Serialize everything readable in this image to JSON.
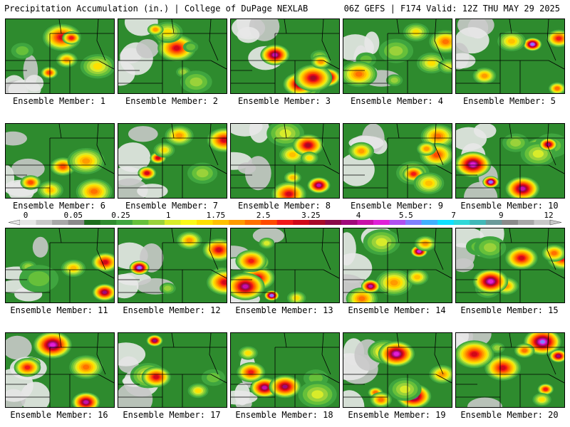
{
  "header": {
    "left": "Precipitation Accumulation (in.) | College of DuPage NEXLAB",
    "right": "06Z GEFS | F174 Valid: 12Z THU MAY 29 2025"
  },
  "members": [
    {
      "label": "Ensemble Member: 1"
    },
    {
      "label": "Ensemble Member: 2"
    },
    {
      "label": "Ensemble Member: 3"
    },
    {
      "label": "Ensemble Member: 4"
    },
    {
      "label": "Ensemble Member: 5"
    },
    {
      "label": "Ensemble Member: 6"
    },
    {
      "label": "Ensemble Member: 7"
    },
    {
      "label": "Ensemble Member: 8"
    },
    {
      "label": "Ensemble Member: 9"
    },
    {
      "label": "Ensemble Member: 10"
    },
    {
      "label": "Ensemble Member: 11"
    },
    {
      "label": "Ensemble Member: 12"
    },
    {
      "label": "Ensemble Member: 13"
    },
    {
      "label": "Ensemble Member: 14"
    },
    {
      "label": "Ensemble Member: 15"
    },
    {
      "label": "Ensemble Member: 16"
    },
    {
      "label": "Ensemble Member: 17"
    },
    {
      "label": "Ensemble Member: 18"
    },
    {
      "label": "Ensemble Member: 19"
    },
    {
      "label": "Ensemble Member: 20"
    }
  ],
  "colorbar": {
    "labels": [
      "0",
      "0.05",
      "0.25",
      "1",
      "1.75",
      "2.5",
      "3.25",
      "4",
      "5.5",
      "7",
      "9",
      "12"
    ],
    "colors": [
      "#e6e6e6",
      "#c8c8c8",
      "#a8a8a8",
      "#8a8a8a",
      "#1e6e1e",
      "#2e8b2e",
      "#3fa53f",
      "#66c03a",
      "#9ad23a",
      "#d8ec2a",
      "#fafa18",
      "#ffe000",
      "#ffc000",
      "#ff9a00",
      "#ff7000",
      "#ff4a00",
      "#f01818",
      "#d00818",
      "#a80828",
      "#8a0848",
      "#a0087a",
      "#c810a8",
      "#e020d8",
      "#b050f0",
      "#8080ff",
      "#40b0ff",
      "#10e0ff",
      "#30d8d8",
      "#40b8b8",
      "#6a9a9a",
      "#8a8a8a",
      "#a8a8a8",
      "#c8c8c8"
    ]
  }
}
